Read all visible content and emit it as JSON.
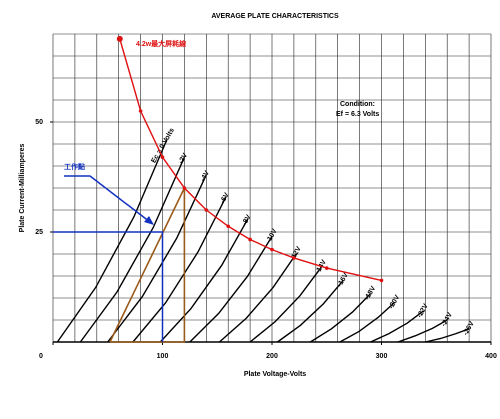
{
  "chart_data": {
    "type": "line",
    "title": "AVERAGE PLATE CHARACTERISTICS",
    "x_label": "Plate Voltage-Volts",
    "y_label": "Plate Current-Milliamperes",
    "xlim": [
      0,
      400
    ],
    "ylim": [
      0,
      70
    ],
    "xticks": [
      0,
      100,
      200,
      300,
      400
    ],
    "yticks": [
      25,
      50
    ],
    "minor_xticks": [
      0,
      20,
      40,
      60,
      80,
      100,
      120,
      140,
      160,
      180,
      200,
      220,
      240,
      260,
      280,
      300,
      320,
      340,
      360,
      380,
      400
    ],
    "minor_yticks": [
      0,
      5,
      10,
      15,
      20,
      25,
      30,
      35,
      40,
      45,
      50,
      55,
      60,
      65,
      70
    ],
    "grid": true,
    "color": "#000000",
    "series": [
      {
        "name": "Ec = 0 Volts",
        "x": [
          4,
          39,
          74,
          104
        ],
        "values": [
          0,
          12.4,
          28.5,
          46
        ]
      },
      {
        "name": "-2V",
        "x": [
          25,
          58.3,
          91.5,
          120
        ],
        "values": [
          0,
          11.3,
          26,
          42
        ]
      },
      {
        "name": "-4V",
        "x": [
          50,
          81.5,
          113,
          140
        ],
        "values": [
          0,
          10.3,
          23.6,
          38
        ]
      },
      {
        "name": "-6V",
        "x": [
          73,
          102.8,
          132.5,
          158
        ],
        "values": [
          0,
          8.9,
          20.5,
          33
        ]
      },
      {
        "name": "-8V",
        "x": [
          98,
          126,
          154,
          178
        ],
        "values": [
          0,
          7.6,
          17.4,
          28
        ]
      },
      {
        "name": "-10V",
        "x": [
          125,
          151.3,
          177.5,
          200
        ],
        "values": [
          0,
          6.5,
          14.9,
          24
        ]
      },
      {
        "name": "-12V",
        "x": [
          152,
          176.5,
          201,
          222
        ],
        "values": [
          0,
          5.4,
          12.4,
          20
        ]
      },
      {
        "name": "-14V",
        "x": [
          180,
          202.8,
          225.5,
          245
        ],
        "values": [
          0,
          4.6,
          10.5,
          17
        ]
      },
      {
        "name": "-16V",
        "x": [
          205,
          226,
          247,
          265
        ],
        "values": [
          0,
          3.8,
          8.7,
          14
        ]
      },
      {
        "name": "-18V",
        "x": [
          235,
          254.3,
          273.5,
          290
        ],
        "values": [
          0,
          3,
          6.8,
          11
        ]
      },
      {
        "name": "-20V",
        "x": [
          262,
          279.5,
          297,
          312
        ],
        "values": [
          0,
          2.4,
          5.6,
          9
        ]
      },
      {
        "name": "-22V",
        "x": [
          290,
          306.8,
          323.6,
          338
        ],
        "values": [
          0,
          1.9,
          4.3,
          7
        ]
      },
      {
        "name": "-24V",
        "x": [
          315,
          330.8,
          346.5,
          360
        ],
        "values": [
          0,
          1.4,
          3.1,
          5
        ]
      },
      {
        "name": "-26V",
        "x": [
          340,
          354,
          368,
          380
        ],
        "values": [
          0,
          0.8,
          1.9,
          3
        ]
      }
    ],
    "max_dissipation": {
      "name": "4.2w最大屏耗線",
      "color": "#e01010",
      "x": [
        61,
        80,
        100,
        120,
        140,
        160,
        180,
        200,
        220,
        250,
        300
      ],
      "values": [
        68.9,
        52.5,
        42,
        35,
        30,
        26.3,
        23.3,
        21,
        19.1,
        16.8,
        14
      ]
    },
    "operating_point": {
      "label": "工作點",
      "color": "#1030c0",
      "x": 100,
      "y": 25
    },
    "load_line": {
      "color": "#9a5a1a",
      "x": [
        52,
        120,
        120,
        52
      ],
      "values": [
        0,
        35,
        0,
        0
      ]
    },
    "condition": [
      "Condition:",
      "Ef = 6.3 Volts"
    ]
  }
}
